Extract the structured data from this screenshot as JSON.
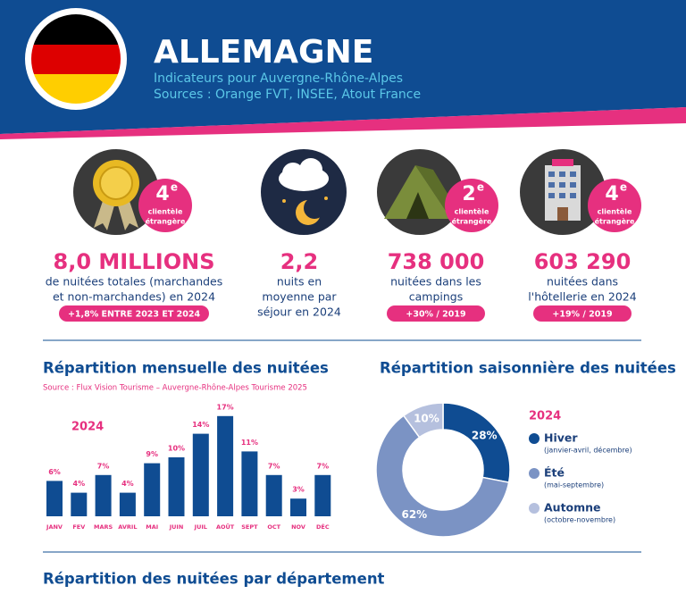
{
  "header": {
    "title": "ALLEMAGNE",
    "subtitle": "Indicateurs pour Auvergne-Rhône-Alpes",
    "sources": "Sources : Orange FVT, INSEE, Atout France"
  },
  "kpis": [
    {
      "badge_rank": "4",
      "badge_suffix": "e",
      "badge_text": [
        "clientèle",
        "étrangère"
      ],
      "value": "8,0 MILLIONS",
      "description": [
        "de nuitées totales (marchandes",
        "et non-marchandes) en 2024"
      ],
      "pill": "+1,8% ENTRE 2023 ET 2024"
    },
    {
      "value": "2,2",
      "description": [
        "nuits en",
        "moyenne par",
        "séjour en 2024"
      ]
    },
    {
      "badge_rank": "2",
      "badge_suffix": "e",
      "badge_text": [
        "clientèle",
        "étrangère"
      ],
      "value": "738 000",
      "description": [
        "nuitées dans les",
        "campings"
      ],
      "pill": "+30% / 2019"
    },
    {
      "badge_rank": "4",
      "badge_suffix": "e",
      "badge_text": [
        "clientèle",
        "étrangère"
      ],
      "value": "603 290",
      "description": [
        "nuitées dans",
        "l'hôtellerie en 2024"
      ],
      "pill": "+19% / 2019"
    }
  ],
  "monthly": {
    "title": "Répartition mensuelle des nuitées",
    "source": "Source : Flux Vision Tourisme – Auvergne-Rhône-Alpes Tourisme 2025",
    "year": "2024",
    "color": "#0f4c92",
    "categories": [
      "JANV",
      "FEV",
      "MARS",
      "AVRIL",
      "MAI",
      "JUIN",
      "JUIL",
      "AOÛT",
      "SEPT",
      "OCT",
      "NOV",
      "DÉC"
    ],
    "values": [
      6,
      4,
      7,
      4,
      9,
      10,
      14,
      17,
      11,
      7,
      3,
      7
    ],
    "value_labels": [
      "6%",
      "4%",
      "7%",
      "4%",
      "9%",
      "10%",
      "14%",
      "17%",
      "11%",
      "7%",
      "3%",
      "7%"
    ]
  },
  "seasonal": {
    "title": "Répartition saisonnière des nuitées",
    "year": "2024",
    "segments": [
      {
        "name": "Hiver",
        "period": "(janvier-avril, décembre)",
        "value": 28,
        "value_label": "28%",
        "color": "#0f4c92"
      },
      {
        "name": "Été",
        "period": "(mai-septembre)",
        "value": 62,
        "value_label": "62%",
        "color": "#7b93c4"
      },
      {
        "name": "Automne",
        "period": "(octobre-novembre)",
        "value": 10,
        "value_label": "10%",
        "color": "#b5c0de"
      }
    ]
  },
  "section_title": "Répartition des nuitées par département"
}
